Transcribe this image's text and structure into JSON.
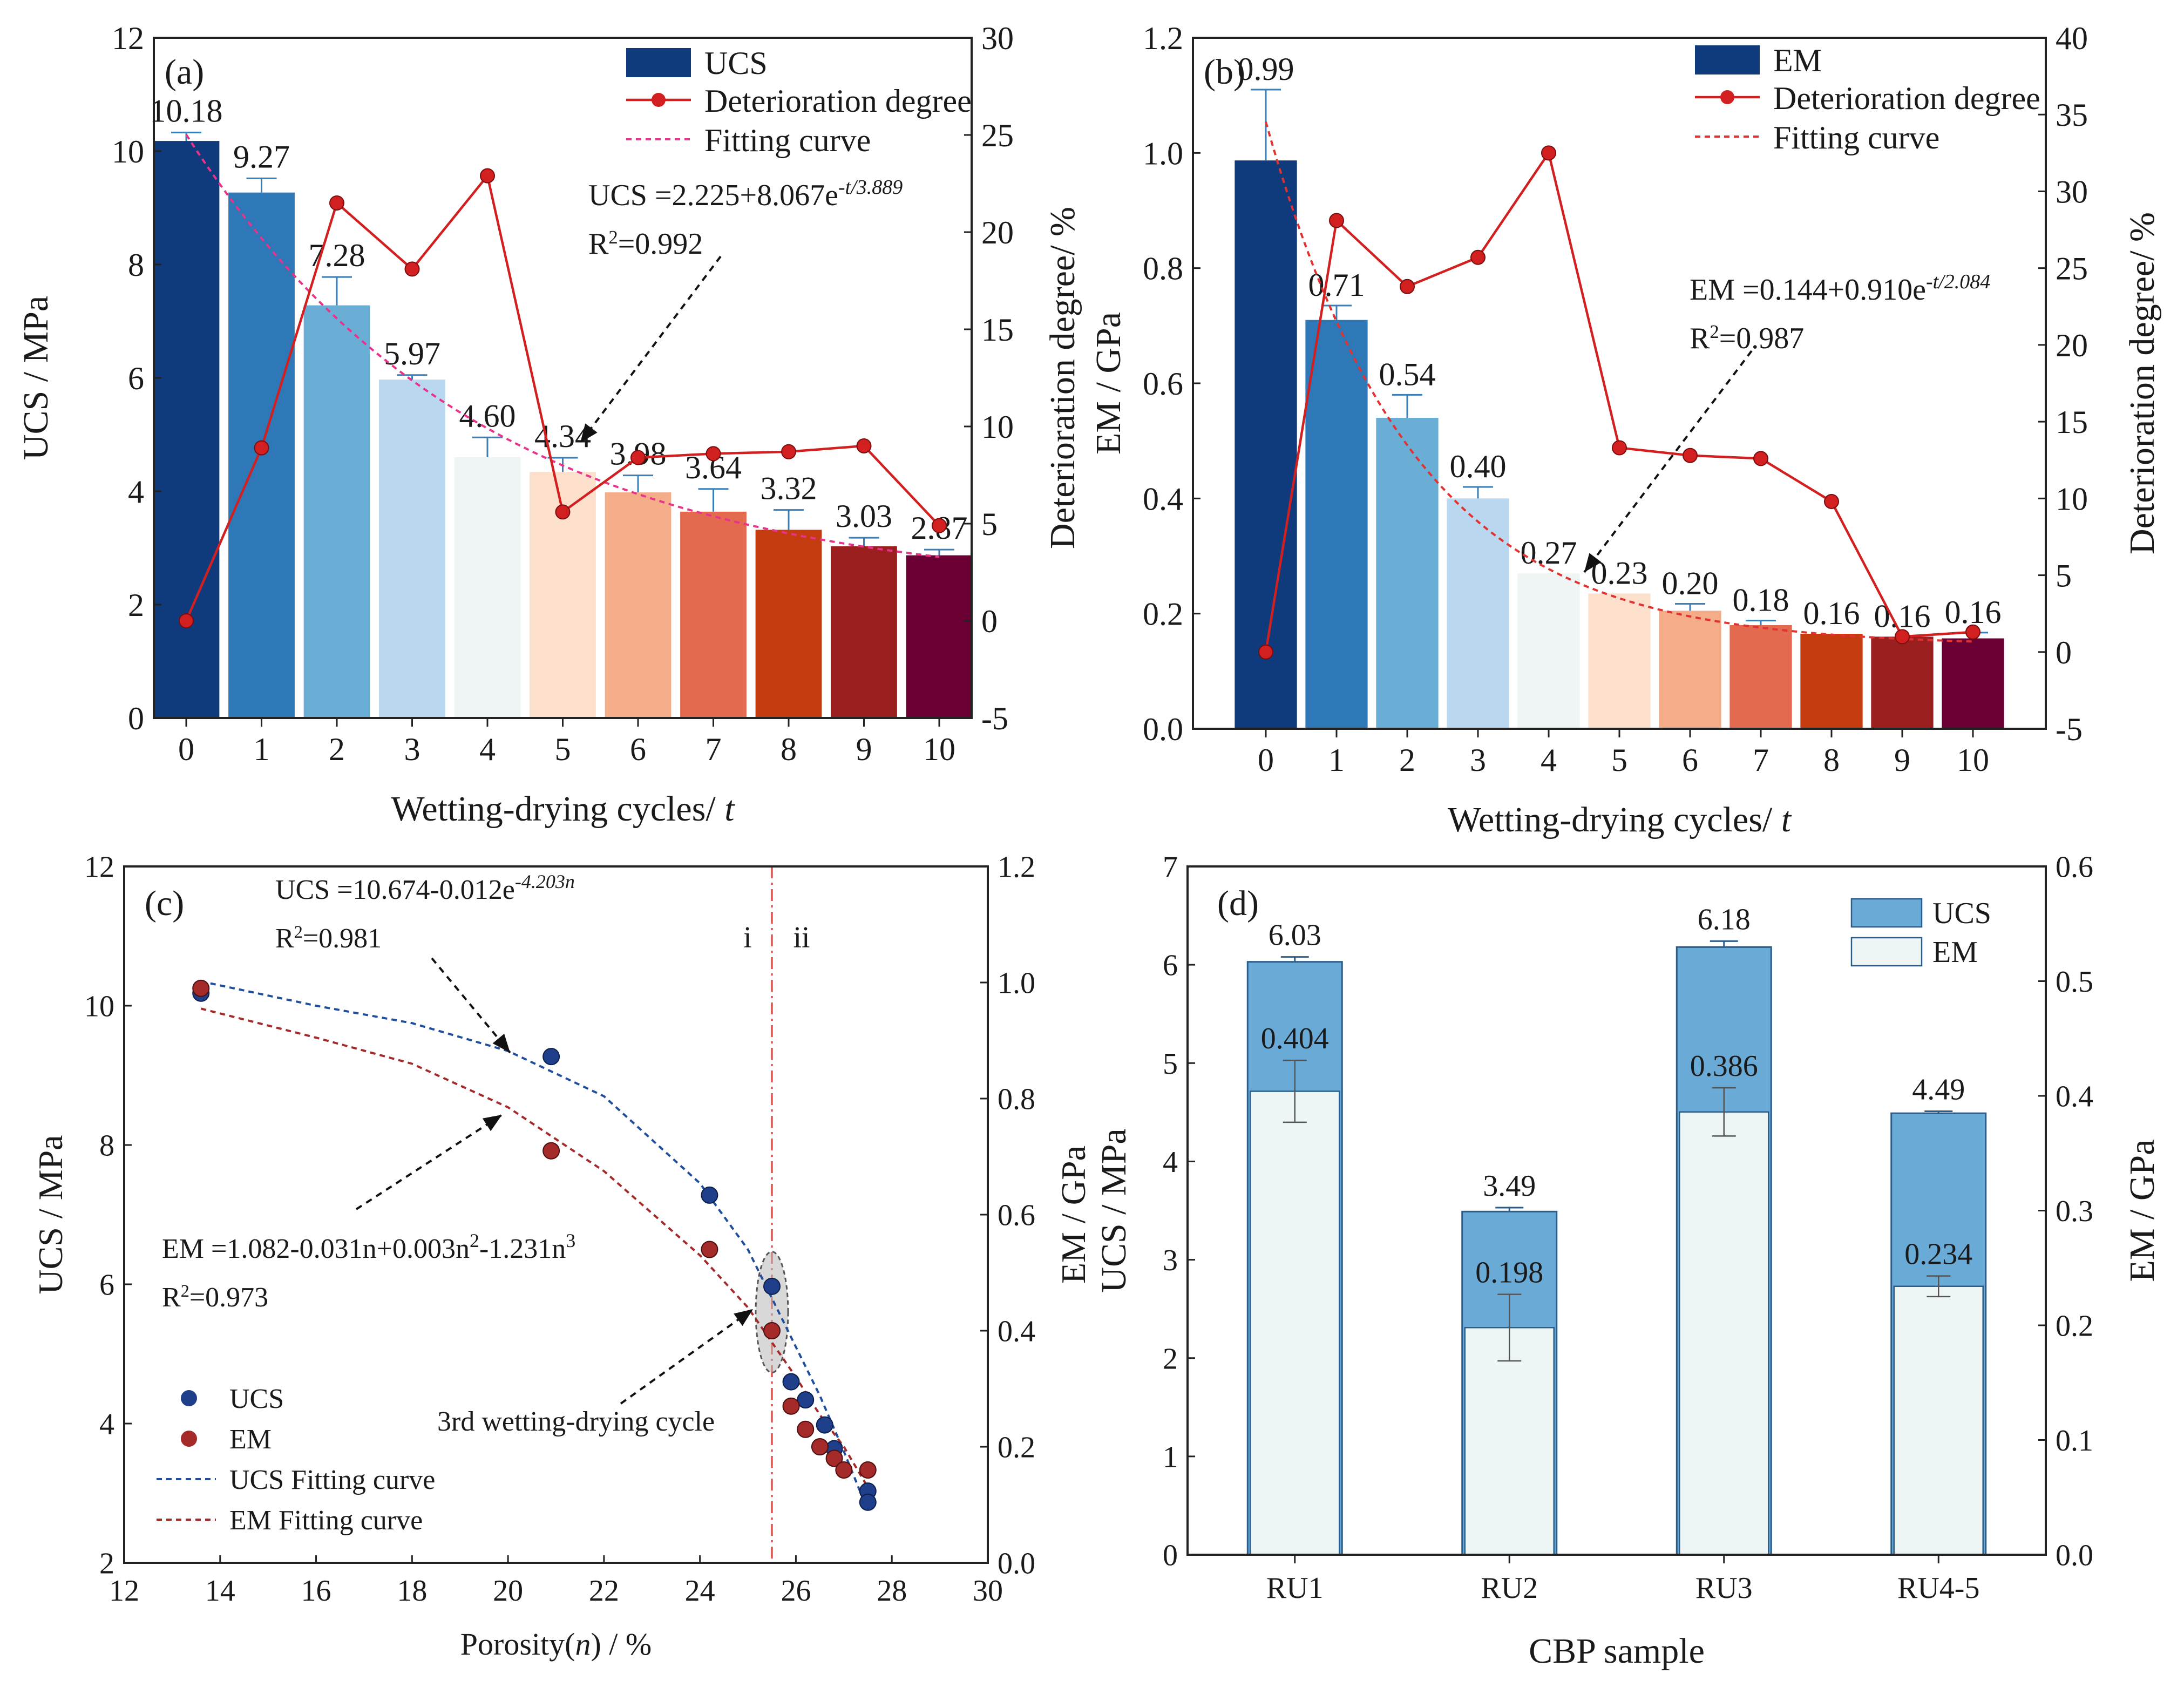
{
  "chart_data": [
    {
      "panel": "(a)",
      "type": "bar",
      "x": [
        "0",
        "1",
        "2",
        "3",
        "4",
        "5",
        "6",
        "7",
        "8",
        "9",
        "10"
      ],
      "xlabel_pre": "Wetting-drying cycles/",
      "xlabel_var": "t",
      "ylabel": "UCS / MPa",
      "ylim": [
        0,
        12
      ],
      "yticks": [
        "0",
        "2",
        "4",
        "6",
        "8",
        "10",
        "12"
      ],
      "y2label": "Deterioration degree/ %",
      "y2lim": [
        -5,
        30
      ],
      "y2ticks": [
        "-5",
        "0",
        "5",
        "10",
        "15",
        "20",
        "25",
        "30"
      ],
      "series": [
        {
          "name": "UCS",
          "type": "bar",
          "values": [
            10.18,
            9.27,
            7.28,
            5.97,
            4.6,
            4.34,
            3.98,
            3.64,
            3.32,
            3.03,
            2.87
          ],
          "errors": [
            0.15,
            0.25,
            0.5,
            0.08,
            0.35,
            0.25,
            0.3,
            0.4,
            0.35,
            0.15,
            0.1
          ],
          "labels": [
            "10.18",
            "9.27",
            "7.28",
            "5.97",
            "4.60",
            "4.34",
            "3.98",
            "3.64",
            "3.32",
            "3.03",
            "2.87"
          ]
        },
        {
          "name": "Deterioration degree",
          "type": "line",
          "axis": "right",
          "values": [
            0,
            8.9,
            21.5,
            18.1,
            22.9,
            5.6,
            8.4,
            8.6,
            8.7,
            9.0,
            4.9
          ]
        },
        {
          "name": "Fitting curve",
          "type": "fit",
          "a": 2.225,
          "b": 8.067,
          "tau": 3.889
        }
      ],
      "legend": [
        "UCS",
        "Deterioration degree",
        "Fitting curve"
      ],
      "eq_main": "UCS =2.225+8.067e",
      "eq_sup": "-t/3.889",
      "r2_text": "=0.992"
    },
    {
      "panel": "(b)",
      "type": "bar",
      "x": [
        "0",
        "1",
        "2",
        "3",
        "4",
        "5",
        "6",
        "7",
        "8",
        "9",
        "10"
      ],
      "xlabel_pre": "Wetting-drying cycles/",
      "xlabel_var": "t",
      "ylabel": "EM / GPa",
      "ylim": [
        0,
        1.2
      ],
      "yticks": [
        "0.0",
        "0.2",
        "0.4",
        "0.6",
        "0.8",
        "1.0",
        "1.2"
      ],
      "y2label": "Deterioration degree/ %",
      "y2lim": [
        -5,
        40
      ],
      "y2ticks": [
        "-5",
        "0",
        "5",
        "10",
        "15",
        "20",
        "25",
        "30",
        "35",
        "40"
      ],
      "series": [
        {
          "name": "EM",
          "type": "bar",
          "values": [
            0.987,
            0.71,
            0.54,
            0.4,
            0.27,
            0.235,
            0.205,
            0.18,
            0.165,
            0.16,
            0.157
          ],
          "errors": [
            0.123,
            0.025,
            0.04,
            0.02,
            0,
            0,
            0.012,
            0.008,
            0,
            0,
            0.01
          ],
          "labels": [
            "0.99",
            "0.71",
            "0.54",
            "0.40",
            "0.27",
            "0.23",
            "0.20",
            "0.18",
            "0.16",
            "0.16",
            "0.16"
          ]
        },
        {
          "name": "Deterioration degree",
          "type": "line",
          "axis": "right",
          "values": [
            0,
            28.1,
            23.8,
            25.7,
            32.5,
            13.3,
            12.8,
            12.6,
            9.8,
            1.0,
            1.3
          ]
        },
        {
          "name": "Fitting curve",
          "type": "fit",
          "a": 0.144,
          "b": 0.91,
          "tau": 2.084
        }
      ],
      "legend": [
        "EM",
        "Deterioration degree",
        "Fitting curve"
      ],
      "eq_main": "EM =0.144+0.910e",
      "eq_sup": "-t/2.084",
      "r2_text": "=0.987"
    },
    {
      "panel": "(c)",
      "type": "scatter",
      "xlabel_pre": "Porosity(",
      "xlabel_var": "n",
      "xlabel_post": ") / %",
      "xlim": [
        12,
        30
      ],
      "xticks": [
        "12",
        "14",
        "16",
        "18",
        "20",
        "22",
        "24",
        "26",
        "28",
        "30"
      ],
      "ylabel": "UCS / MPa",
      "ylim": [
        2,
        12
      ],
      "yticks": [
        "2",
        "4",
        "6",
        "8",
        "10",
        "12"
      ],
      "y2label": "EM / GPa",
      "y2lim": [
        0,
        1.2
      ],
      "y2ticks": [
        "0.0",
        "0.2",
        "0.4",
        "0.6",
        "0.8",
        "1.0",
        "1.2"
      ],
      "series": [
        {
          "name": "UCS",
          "x": [
            13.6,
            20.9,
            24.2,
            25.5,
            25.9,
            26.2,
            26.6,
            26.8,
            27.5,
            27.5
          ],
          "y": [
            10.18,
            9.27,
            7.28,
            5.97,
            4.6,
            4.34,
            3.98,
            3.64,
            3.03,
            2.87
          ]
        },
        {
          "name": "EM",
          "x": [
            13.6,
            20.9,
            24.2,
            25.5,
            25.9,
            26.2,
            26.5,
            26.8,
            27.0,
            27.5
          ],
          "y": [
            0.99,
            0.71,
            0.54,
            0.4,
            0.27,
            0.23,
            0.2,
            0.18,
            0.16,
            0.16
          ]
        },
        {
          "name": "UCS Fitting curve",
          "x": [
            13.6,
            16,
            18,
            20,
            22,
            24,
            25,
            26,
            26.5,
            27,
            27.5
          ],
          "y": [
            10.35,
            10.0,
            9.75,
            9.35,
            8.7,
            7.45,
            6.5,
            5.1,
            4.4,
            3.6,
            2.75
          ]
        },
        {
          "name": "EM Fitting curve",
          "x": [
            13.6,
            16,
            18,
            20,
            22,
            24,
            25,
            26,
            26.5,
            27,
            27.5
          ],
          "y": [
            0.955,
            0.905,
            0.86,
            0.785,
            0.675,
            0.53,
            0.44,
            0.32,
            0.255,
            0.2,
            0.13
          ]
        }
      ],
      "divider_x": 25.5,
      "region_labels": [
        "i",
        "ii"
      ],
      "legend": [
        "UCS",
        "EM",
        "UCS Fitting curve",
        "EM Fitting curve"
      ],
      "eq1_main": "UCS =10.674-0.012e",
      "eq1_sup": "-4.203n",
      "eq1_r2": "=0.981",
      "eq2_main": "EM  =1.082-0.031n+0.003n",
      "eq2_sup1": "2",
      "eq2_mid": "-1.231n",
      "eq2_sup2": "3",
      "eq2_r2": "=0.973",
      "annotation": "3rd wetting-drying cycle"
    },
    {
      "panel": "(d)",
      "type": "bar",
      "categories": [
        "RU1",
        "RU2",
        "RU3",
        "RU4-5"
      ],
      "xlabel": "CBP sample",
      "ylabel": "UCS / MPa",
      "ylim": [
        0,
        7
      ],
      "yticks": [
        "0",
        "1",
        "2",
        "3",
        "4",
        "5",
        "6",
        "7"
      ],
      "y2label": "EM / GPa",
      "y2lim": [
        0,
        0.6
      ],
      "y2ticks": [
        "0.0",
        "0.1",
        "0.2",
        "0.3",
        "0.4",
        "0.5",
        "0.6"
      ],
      "series": [
        {
          "name": "UCS",
          "values": [
            6.03,
            3.49,
            6.18,
            4.49
          ],
          "errors": [
            0.05,
            0.04,
            0.06,
            0.02
          ],
          "labels": [
            "6.03",
            "3.49",
            "6.18",
            "4.49"
          ]
        },
        {
          "name": "EM",
          "axis": "right",
          "values": [
            0.404,
            0.198,
            0.386,
            0.234
          ],
          "errors": [
            0.027,
            0.029,
            0.021,
            0.009
          ],
          "labels": [
            "0.404",
            "0.198",
            "0.386",
            "0.234"
          ]
        }
      ],
      "legend": [
        "UCS",
        "EM"
      ]
    }
  ],
  "common": {
    "r2_prefix": "R",
    "r2_sup": "2"
  },
  "colors": {
    "bars_gradient": [
      "#0f3b7c",
      "#2e78b7",
      "#6aaed6",
      "#b9d7ee",
      "#eef5f4",
      "#fde0cc",
      "#f4ac89",
      "#e3694f",
      "#c33b0e",
      "#9c1f1f",
      "#6a0033"
    ],
    "deterioration": "#d21f1f",
    "fit_a": "#e8338a",
    "fit_b": "#e23131",
    "ucs_scatter": "#1f3f8a",
    "em_scatter": "#a52a2a",
    "ucs_fit_c": "#1f4e9c",
    "em_fit_c": "#a52a2a",
    "d_ucs": "#6aaad6",
    "d_em": "#eef5f5"
  }
}
